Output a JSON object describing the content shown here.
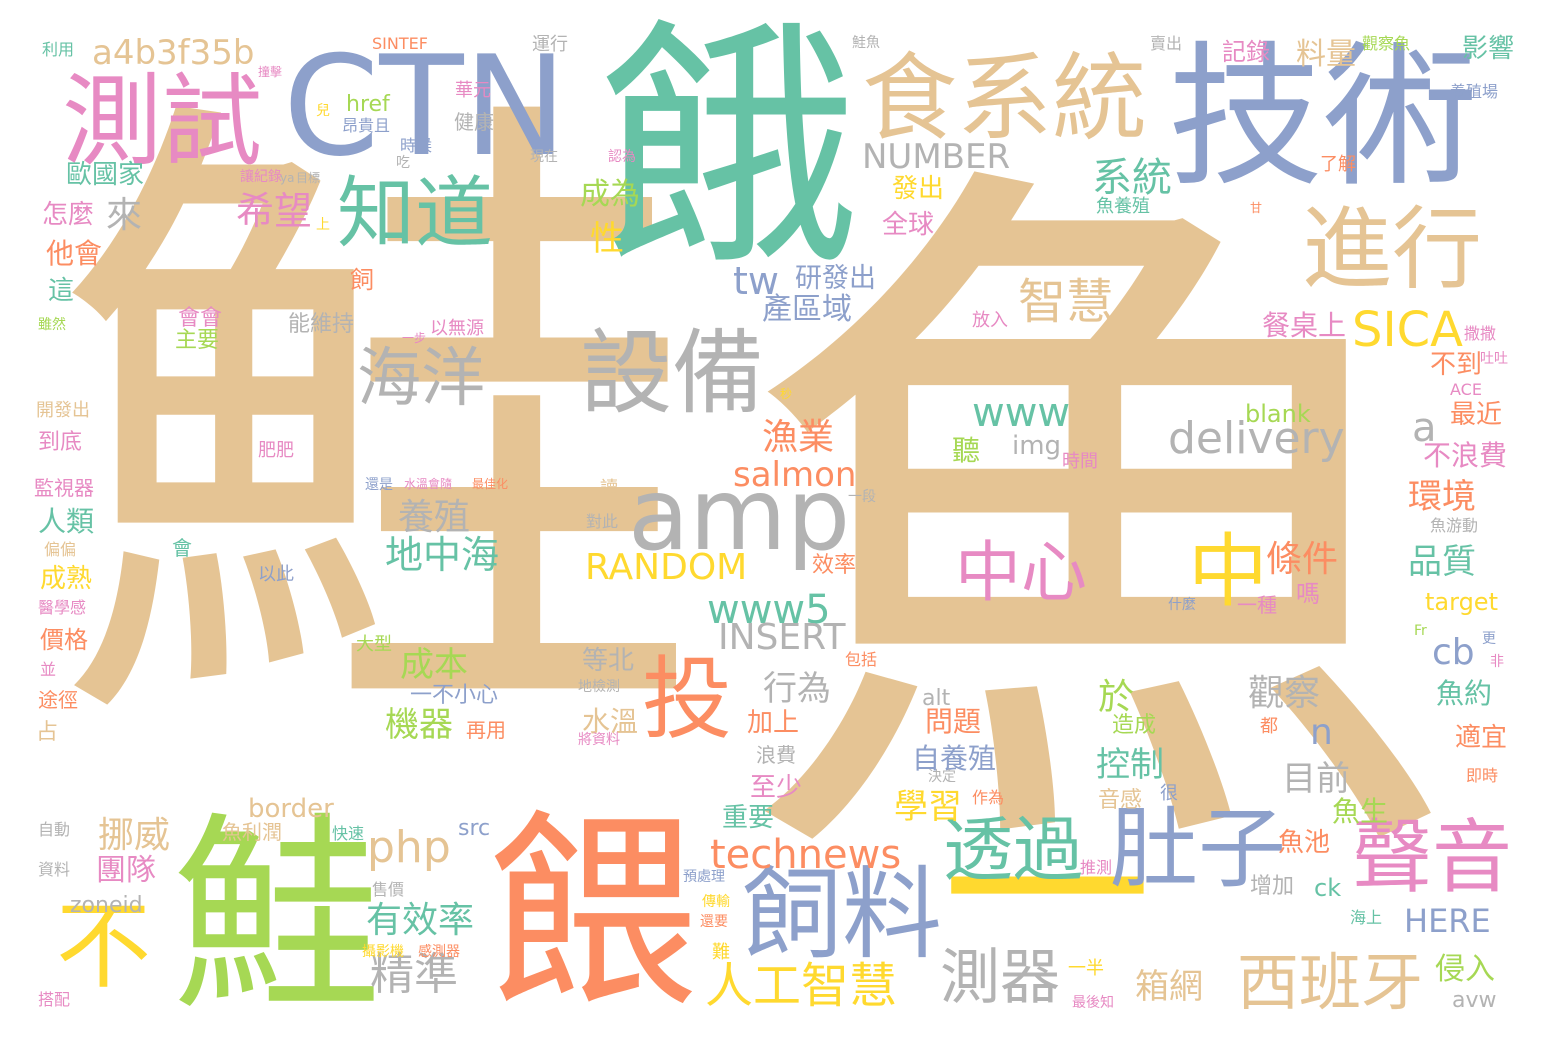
{
  "palette": {
    "tan": "#e5c494",
    "teal": "#66c2a5",
    "periwinkle": "#8da0cb",
    "orange": "#fc8d62",
    "green": "#a6d854",
    "yellow": "#ffd92f",
    "pink": "#e78ac3",
    "gray": "#b3b3b3"
  },
  "words": [
    {
      "text": "鮭",
      "color": "tan"
    },
    {
      "text": "魚",
      "color": "tan"
    },
    {
      "text": "餓",
      "color": "teal"
    },
    {
      "text": "CTN",
      "color": "periwinkle"
    },
    {
      "text": "技術",
      "color": "periwinkle"
    },
    {
      "text": "食系統",
      "color": "tan"
    },
    {
      "text": "測試",
      "color": "pink"
    },
    {
      "text": "a4b3f35b",
      "color": "tan"
    },
    {
      "text": "知道",
      "color": "teal"
    },
    {
      "text": "進行",
      "color": "tan"
    },
    {
      "text": "設備",
      "color": "gray"
    },
    {
      "text": "海洋",
      "color": "gray"
    },
    {
      "text": "amp",
      "color": "gray"
    },
    {
      "text": "投",
      "color": "orange"
    },
    {
      "text": "鮭",
      "color": "green"
    },
    {
      "text": "餵",
      "color": "orange"
    },
    {
      "text": "不",
      "color": "yellow"
    },
    {
      "text": "一",
      "color": "yellow"
    },
    {
      "text": "飼料",
      "color": "periwinkle"
    },
    {
      "text": "肚子",
      "color": "periwinkle"
    },
    {
      "text": "聲音",
      "color": "pink"
    },
    {
      "text": "透過",
      "color": "teal"
    },
    {
      "text": "中心",
      "color": "pink"
    },
    {
      "text": "中",
      "color": "yellow"
    },
    {
      "text": "SICA",
      "color": "yellow"
    },
    {
      "text": "智慧",
      "color": "tan"
    },
    {
      "text": "西班牙",
      "color": "tan"
    },
    {
      "text": "測器",
      "color": "gray"
    },
    {
      "text": "人工智慧",
      "color": "yellow"
    },
    {
      "text": "technews",
      "color": "orange"
    },
    {
      "text": "php",
      "color": "tan"
    },
    {
      "text": "delivery",
      "color": "gray"
    },
    {
      "text": "www",
      "color": "teal"
    },
    {
      "text": "www5",
      "color": "teal"
    },
    {
      "text": "NUMBER",
      "color": "gray"
    },
    {
      "text": "系統",
      "color": "teal"
    },
    {
      "text": "希望",
      "color": "pink"
    },
    {
      "text": "tw",
      "color": "periwinkle"
    },
    {
      "text": "研發出",
      "color": "periwinkle"
    },
    {
      "text": "產區域",
      "color": "periwinkle"
    },
    {
      "text": "來",
      "color": "gray"
    },
    {
      "text": "成為",
      "color": "green"
    },
    {
      "text": "性",
      "color": "yellow"
    },
    {
      "text": "漁業",
      "color": "orange"
    },
    {
      "text": "salmon",
      "color": "orange"
    },
    {
      "text": "RANDOM",
      "color": "yellow"
    },
    {
      "text": "INSERT",
      "color": "gray"
    },
    {
      "text": "地中海",
      "color": "teal"
    },
    {
      "text": "養殖",
      "color": "gray"
    },
    {
      "text": "成本",
      "color": "green"
    },
    {
      "text": "機器",
      "color": "green"
    },
    {
      "text": "行為",
      "color": "gray"
    },
    {
      "text": "有效率",
      "color": "teal"
    },
    {
      "text": "精準",
      "color": "gray"
    },
    {
      "text": "條件",
      "color": "orange"
    },
    {
      "text": "品質",
      "color": "teal"
    },
    {
      "text": "環境",
      "color": "orange"
    },
    {
      "text": "觀察",
      "color": "gray"
    },
    {
      "text": "控制",
      "color": "teal"
    },
    {
      "text": "目前",
      "color": "gray"
    },
    {
      "text": "挪威",
      "color": "tan"
    },
    {
      "text": "團隊",
      "color": "pink"
    },
    {
      "text": "學習",
      "color": "yellow"
    },
    {
      "text": "重要",
      "color": "teal"
    },
    {
      "text": "箱網",
      "color": "tan"
    },
    {
      "text": "n",
      "color": "periwinkle"
    },
    {
      "text": "a",
      "color": "gray"
    },
    {
      "text": "cb",
      "color": "periwinkle"
    },
    {
      "text": "於",
      "color": "green"
    },
    {
      "text": "HERE",
      "color": "periwinkle"
    },
    {
      "text": "侵入",
      "color": "green"
    },
    {
      "text": "avw",
      "color": "gray"
    },
    {
      "text": "zoneid",
      "color": "gray"
    },
    {
      "text": "問題",
      "color": "orange"
    },
    {
      "text": "自養殖",
      "color": "periwinkle"
    },
    {
      "text": "至少",
      "color": "pink"
    },
    {
      "text": "加上",
      "color": "orange"
    },
    {
      "text": "水溫",
      "color": "tan"
    },
    {
      "text": "等北",
      "color": "gray"
    },
    {
      "text": "最近",
      "color": "orange"
    },
    {
      "text": "不浪費",
      "color": "pink"
    },
    {
      "text": "不到",
      "color": "orange"
    },
    {
      "text": "餐桌上",
      "color": "pink"
    },
    {
      "text": "魚約",
      "color": "teal"
    },
    {
      "text": "適宜",
      "color": "orange"
    },
    {
      "text": "target",
      "color": "yellow"
    },
    {
      "text": "blank",
      "color": "green"
    },
    {
      "text": "img",
      "color": "gray"
    },
    {
      "text": "聽",
      "color": "green"
    },
    {
      "text": "全球",
      "color": "pink"
    },
    {
      "text": "發出",
      "color": "yellow"
    },
    {
      "text": "料量",
      "color": "tan"
    },
    {
      "text": "影響",
      "color": "teal"
    },
    {
      "text": "記錄",
      "color": "pink"
    },
    {
      "text": "歐國家",
      "color": "teal"
    },
    {
      "text": "怎麼",
      "color": "pink"
    },
    {
      "text": "他會",
      "color": "orange"
    },
    {
      "text": "這",
      "color": "teal"
    },
    {
      "text": "人類",
      "color": "teal"
    },
    {
      "text": "成熟",
      "color": "yellow"
    },
    {
      "text": "價格",
      "color": "orange"
    },
    {
      "text": "健康",
      "color": "gray"
    },
    {
      "text": "href",
      "color": "green"
    },
    {
      "text": "border",
      "color": "tan"
    },
    {
      "text": "src",
      "color": "periwinkle"
    },
    {
      "text": "ck",
      "color": "teal"
    },
    {
      "text": "魚生",
      "color": "green"
    },
    {
      "text": "魚池",
      "color": "orange"
    },
    {
      "text": "增加",
      "color": "gray"
    },
    {
      "text": "音感",
      "color": "tan"
    },
    {
      "text": "造成",
      "color": "green"
    },
    {
      "text": "飼",
      "color": "orange"
    },
    {
      "text": "能維持",
      "color": "gray"
    },
    {
      "text": "主要",
      "color": "green"
    },
    {
      "text": "會會",
      "color": "pink"
    },
    {
      "text": "以無源",
      "color": "pink"
    },
    {
      "text": "放入",
      "color": "pink"
    },
    {
      "text": "效率",
      "color": "orange"
    },
    {
      "text": "一種",
      "color": "pink"
    },
    {
      "text": "嗎",
      "color": "pink"
    },
    {
      "text": "一不小心",
      "color": "periwinkle"
    },
    {
      "text": "再用",
      "color": "orange"
    },
    {
      "text": "浪費",
      "color": "gray"
    },
    {
      "text": "魚利潤",
      "color": "tan"
    },
    {
      "text": "占",
      "color": "tan"
    },
    {
      "text": "途徑",
      "color": "orange"
    },
    {
      "text": "監視器",
      "color": "pink"
    },
    {
      "text": "到底",
      "color": "pink"
    },
    {
      "text": "開發出",
      "color": "tan"
    },
    {
      "text": "SINTEF",
      "color": "orange"
    },
    {
      "text": "利用",
      "color": "teal"
    },
    {
      "text": "運行",
      "color": "gray"
    },
    {
      "text": "華元",
      "color": "pink"
    },
    {
      "text": "時候",
      "color": "periwinkle"
    },
    {
      "text": "時間",
      "color": "pink"
    },
    {
      "text": "alt",
      "color": "gray"
    },
    {
      "text": "包括",
      "color": "orange"
    },
    {
      "text": "大型",
      "color": "green"
    },
    {
      "text": "以此",
      "color": "periwinkle"
    },
    {
      "text": "會",
      "color": "teal"
    },
    {
      "text": "肥肥",
      "color": "pink"
    },
    {
      "text": "鮭魚",
      "color": "gray"
    },
    {
      "text": "賣出",
      "color": "gray"
    },
    {
      "text": "觀察魚",
      "color": "green"
    },
    {
      "text": "養殖場",
      "color": "periwinkle"
    },
    {
      "text": "了解",
      "color": "orange"
    },
    {
      "text": "魚養殖",
      "color": "teal"
    },
    {
      "text": "ACE",
      "color": "pink"
    },
    {
      "text": "魚游動",
      "color": "gray"
    },
    {
      "text": "撒撒",
      "color": "pink"
    },
    {
      "text": "即時",
      "color": "orange"
    },
    {
      "text": "Fr",
      "color": "green"
    },
    {
      "text": "更",
      "color": "periwinkle"
    },
    {
      "text": "非",
      "color": "pink"
    },
    {
      "text": "都",
      "color": "orange"
    },
    {
      "text": "很",
      "color": "periwinkle"
    },
    {
      "text": "作為",
      "color": "orange"
    },
    {
      "text": "決定",
      "color": "gray"
    },
    {
      "text": "快速",
      "color": "teal"
    },
    {
      "text": "售價",
      "color": "gray"
    },
    {
      "text": "預處理",
      "color": "periwinkle"
    },
    {
      "text": "推測",
      "color": "pink"
    },
    {
      "text": "傳輸",
      "color": "yellow"
    },
    {
      "text": "難",
      "color": "yellow"
    },
    {
      "text": "還要",
      "color": "orange"
    },
    {
      "text": "一半",
      "color": "yellow"
    },
    {
      "text": "最後知",
      "color": "pink"
    },
    {
      "text": "海上",
      "color": "teal"
    },
    {
      "text": "攝影機",
      "color": "yellow"
    },
    {
      "text": "感測器",
      "color": "orange"
    },
    {
      "text": "搭配",
      "color": "pink"
    },
    {
      "text": "資料",
      "color": "gray"
    },
    {
      "text": "自動",
      "color": "gray"
    },
    {
      "text": "將資料",
      "color": "pink"
    },
    {
      "text": "地檢測",
      "color": "gray"
    },
    {
      "text": "兒",
      "color": "yellow"
    },
    {
      "text": "上",
      "color": "yellow"
    },
    {
      "text": "吃",
      "color": "gray"
    },
    {
      "text": "讀",
      "color": "tan"
    },
    {
      "text": "對此",
      "color": "gray"
    },
    {
      "text": "還是",
      "color": "periwinkle"
    },
    {
      "text": "一段",
      "color": "gray"
    },
    {
      "text": "水溫會隨",
      "color": "pink"
    },
    {
      "text": "最佳化",
      "color": "orange"
    },
    {
      "text": "一步",
      "color": "pink"
    },
    {
      "text": "雖然",
      "color": "green"
    },
    {
      "text": "偏偏",
      "color": "tan"
    },
    {
      "text": "醫學感",
      "color": "pink"
    },
    {
      "text": "並",
      "color": "pink"
    },
    {
      "text": "什麼",
      "color": "periwinkle"
    },
    {
      "text": "昂貴且",
      "color": "periwinkle"
    },
    {
      "text": "認為",
      "color": "pink"
    },
    {
      "text": "現在",
      "color": "gray"
    },
    {
      "text": "目標",
      "color": "gray"
    },
    {
      "text": "讓紀錄",
      "color": "pink"
    },
    {
      "text": "ya",
      "color": "gray"
    },
    {
      "text": "撞擊",
      "color": "pink"
    },
    {
      "text": "秒",
      "color": "yellow"
    },
    {
      "text": "甘",
      "color": "orange"
    },
    {
      "text": "吐吐",
      "color": "pink"
    }
  ]
}
